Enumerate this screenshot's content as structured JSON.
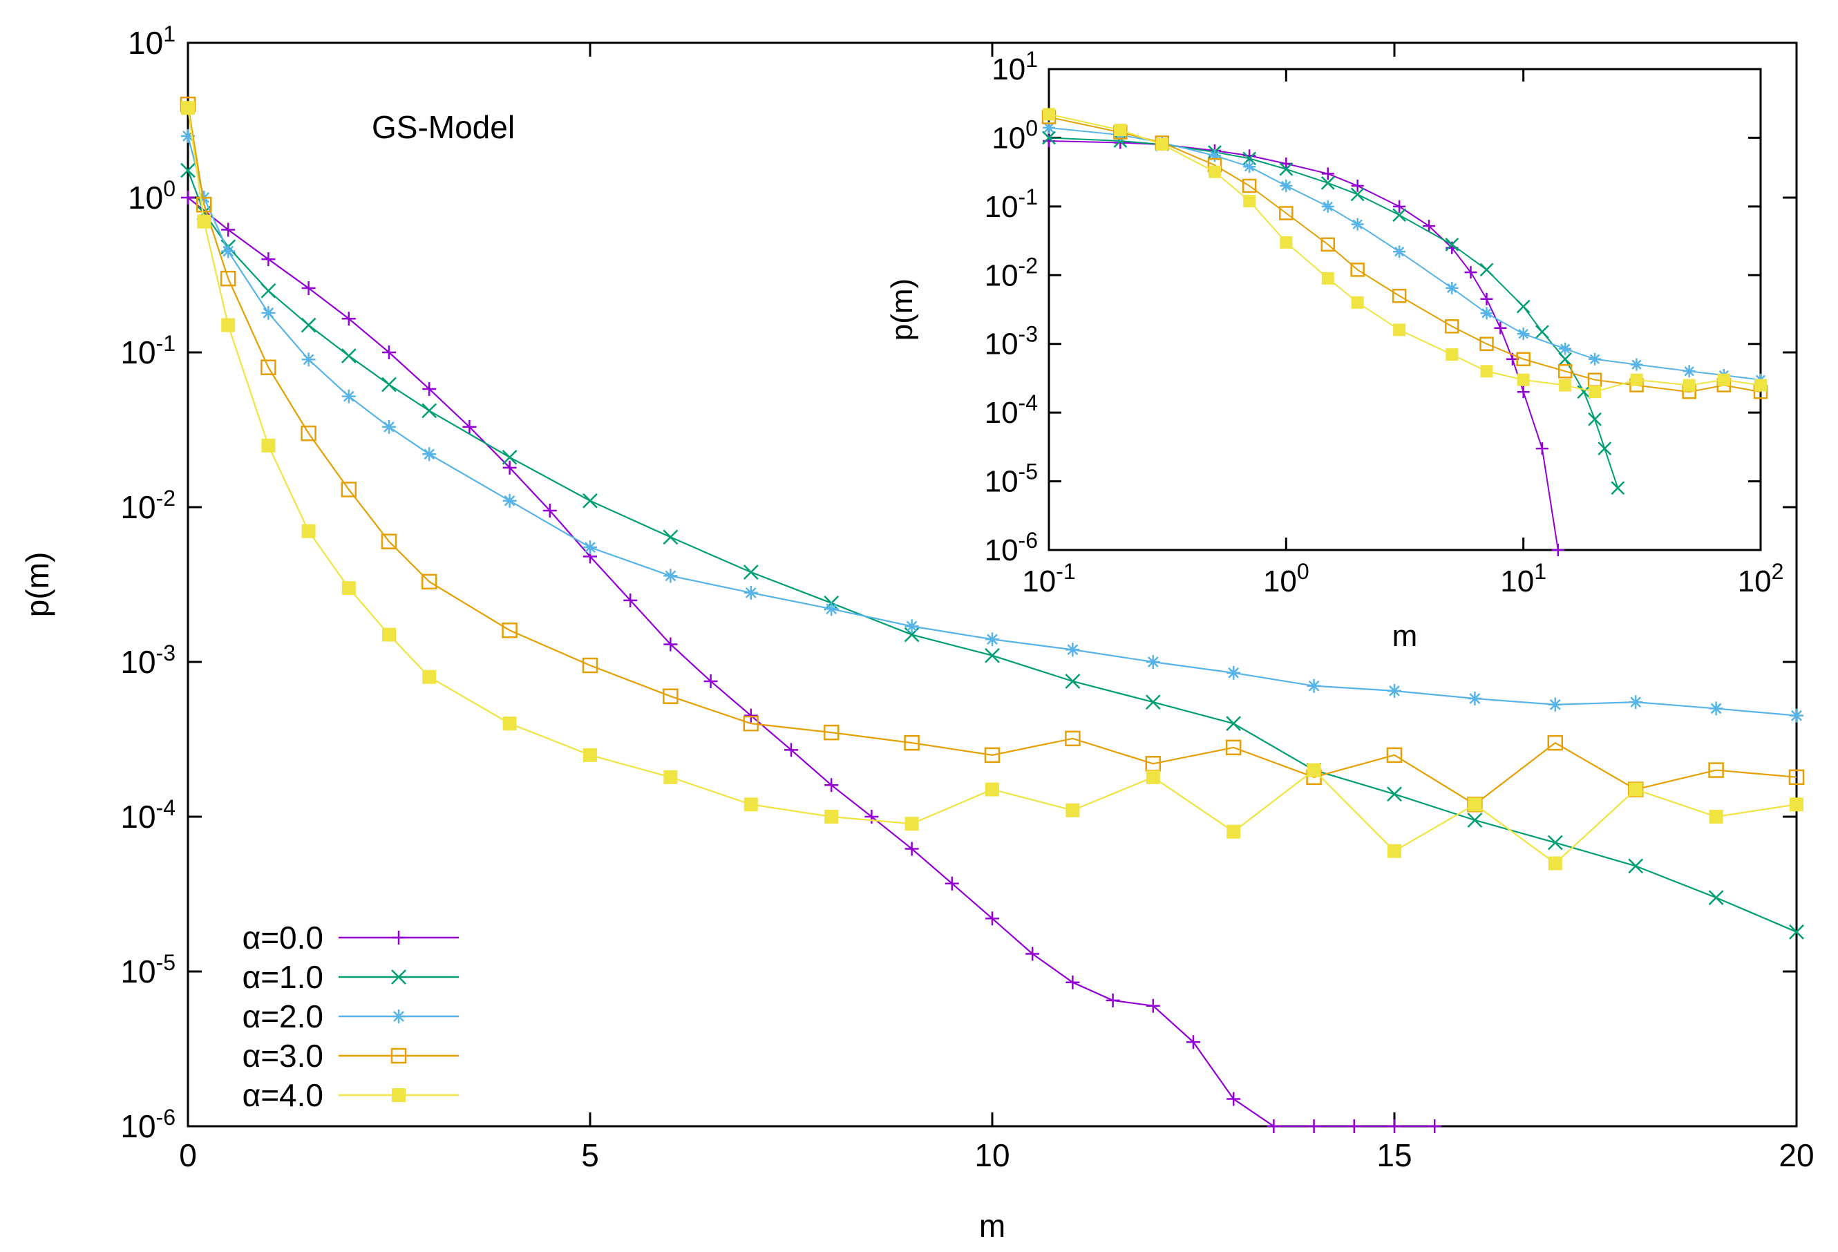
{
  "chart_data": [
    {
      "type": "line",
      "title": "",
      "annotation": "GS-Model",
      "xlabel": "m",
      "ylabel": "p(m)",
      "xlim": [
        0,
        20
      ],
      "ylim": [
        1e-06,
        10
      ],
      "y_scale": "log",
      "grid": false,
      "legend_position": "bottom-left",
      "x_ticks": [
        "0",
        "5",
        "10",
        "15",
        "20"
      ],
      "y_ticks": [
        {
          "base": "10",
          "exp": "1"
        },
        {
          "base": "10",
          "exp": "0"
        },
        {
          "base": "10",
          "exp": "-1"
        },
        {
          "base": "10",
          "exp": "-2"
        },
        {
          "base": "10",
          "exp": "-3"
        },
        {
          "base": "10",
          "exp": "-4"
        },
        {
          "base": "10",
          "exp": "-5"
        },
        {
          "base": "10",
          "exp": "-6"
        }
      ],
      "series": [
        {
          "name": "α=0.0",
          "color": "#9400d3",
          "marker": "plus",
          "x": [
            0,
            0.5,
            1,
            1.5,
            2,
            2.5,
            3,
            3.5,
            4,
            4.5,
            5,
            5.5,
            6,
            6.5,
            7,
            7.5,
            8,
            8.5,
            9,
            9.5,
            10,
            10.5,
            11,
            11.5,
            12,
            12.5,
            13,
            13.5,
            14,
            14.5,
            15,
            15.5
          ],
          "y": [
            1.0,
            0.62,
            0.4,
            0.26,
            0.165,
            0.1,
            0.058,
            0.033,
            0.018,
            0.0095,
            0.0048,
            0.0025,
            0.0013,
            0.00075,
            0.00045,
            0.00027,
            0.00016,
            0.0001,
            6.2e-05,
            3.7e-05,
            2.2e-05,
            1.3e-05,
            8.5e-06,
            6.5e-06,
            6e-06,
            3.5e-06,
            1.5e-06,
            1e-06,
            1e-06,
            1e-06,
            1e-06,
            1e-06
          ]
        },
        {
          "name": "α=1.0",
          "color": "#009e73",
          "marker": "cross",
          "x": [
            0,
            0.2,
            0.5,
            1,
            1.5,
            2,
            2.5,
            3,
            4,
            5,
            6,
            7,
            8,
            9,
            10,
            11,
            12,
            13,
            14,
            15,
            16,
            17,
            18,
            19,
            20
          ],
          "y": [
            1.5,
            0.8,
            0.48,
            0.25,
            0.15,
            0.095,
            0.062,
            0.042,
            0.021,
            0.011,
            0.0064,
            0.0038,
            0.0024,
            0.0015,
            0.0011,
            0.00075,
            0.00055,
            0.0004,
            0.0002,
            0.00014,
            9.5e-05,
            6.8e-05,
            4.8e-05,
            3e-05,
            1.8e-05
          ]
        },
        {
          "name": "α=2.0",
          "color": "#56b4e9",
          "marker": "star",
          "x": [
            0,
            0.2,
            0.5,
            1,
            1.5,
            2,
            2.5,
            3,
            4,
            5,
            6,
            7,
            8,
            9,
            10,
            11,
            12,
            13,
            14,
            15,
            16,
            17,
            18,
            19,
            20
          ],
          "y": [
            2.5,
            1.0,
            0.45,
            0.18,
            0.09,
            0.052,
            0.033,
            0.022,
            0.011,
            0.0055,
            0.0036,
            0.0028,
            0.0022,
            0.0017,
            0.0014,
            0.0012,
            0.001,
            0.00085,
            0.0007,
            0.00065,
            0.00058,
            0.00053,
            0.00055,
            0.0005,
            0.00045
          ]
        },
        {
          "name": "α=3.0",
          "color": "#e69f00",
          "marker": "open-square",
          "x": [
            0,
            0.2,
            0.5,
            1,
            1.5,
            2,
            2.5,
            3,
            4,
            5,
            6,
            7,
            8,
            9,
            10,
            11,
            12,
            13,
            14,
            15,
            16,
            17,
            18,
            19,
            20
          ],
          "y": [
            4.0,
            0.9,
            0.3,
            0.08,
            0.03,
            0.013,
            0.006,
            0.0033,
            0.0016,
            0.00095,
            0.0006,
            0.0004,
            0.00035,
            0.0003,
            0.00025,
            0.00032,
            0.00022,
            0.00028,
            0.00018,
            0.00025,
            0.00012,
            0.0003,
            0.00015,
            0.0002,
            0.00018
          ]
        },
        {
          "name": "α=4.0",
          "color": "#f0e442",
          "marker": "filled-square",
          "x": [
            0,
            0.2,
            0.5,
            1,
            1.5,
            2,
            2.5,
            3,
            4,
            5,
            6,
            7,
            8,
            9,
            10,
            11,
            12,
            13,
            14,
            15,
            16,
            17,
            18,
            19,
            20
          ],
          "y": [
            3.8,
            0.7,
            0.15,
            0.025,
            0.007,
            0.003,
            0.0015,
            0.0008,
            0.0004,
            0.00025,
            0.00018,
            0.00012,
            0.0001,
            9e-05,
            0.00015,
            0.00011,
            0.00018,
            8e-05,
            0.0002,
            6e-05,
            0.00012,
            5e-05,
            0.00015,
            0.0001,
            0.00012
          ]
        }
      ]
    },
    {
      "type": "line",
      "title": "",
      "xlabel": "m",
      "ylabel": "p(m)",
      "xlim": [
        0.1,
        100
      ],
      "ylim": [
        1e-06,
        10
      ],
      "x_scale": "log",
      "y_scale": "log",
      "grid": false,
      "x_ticks": [
        {
          "base": "10",
          "exp": "-1"
        },
        {
          "base": "10",
          "exp": "0"
        },
        {
          "base": "10",
          "exp": "1"
        },
        {
          "base": "10",
          "exp": "2"
        }
      ],
      "y_ticks": [
        {
          "base": "10",
          "exp": "1"
        },
        {
          "base": "10",
          "exp": "0"
        },
        {
          "base": "10",
          "exp": "-1"
        },
        {
          "base": "10",
          "exp": "-2"
        },
        {
          "base": "10",
          "exp": "-3"
        },
        {
          "base": "10",
          "exp": "-4"
        },
        {
          "base": "10",
          "exp": "-5"
        },
        {
          "base": "10",
          "exp": "-6"
        }
      ],
      "series": [
        {
          "color": "#9400d3",
          "marker": "plus",
          "x": [
            0.1,
            0.2,
            0.3,
            0.5,
            0.7,
            1,
            1.5,
            2,
            3,
            4,
            5,
            6,
            7,
            8,
            9,
            10,
            12,
            14
          ],
          "y": [
            0.9,
            0.85,
            0.8,
            0.65,
            0.55,
            0.42,
            0.3,
            0.2,
            0.1,
            0.052,
            0.025,
            0.011,
            0.0045,
            0.0017,
            0.0006,
            0.0002,
            3e-05,
            1e-06
          ]
        },
        {
          "color": "#009e73",
          "marker": "cross",
          "x": [
            0.1,
            0.2,
            0.3,
            0.5,
            0.7,
            1,
            1.5,
            2,
            3,
            5,
            7,
            10,
            12,
            15,
            18,
            20,
            22,
            25
          ],
          "y": [
            1.0,
            0.9,
            0.8,
            0.62,
            0.5,
            0.35,
            0.22,
            0.15,
            0.075,
            0.028,
            0.012,
            0.0035,
            0.0015,
            0.0006,
            0.0002,
            8e-05,
            3e-05,
            8e-06
          ]
        },
        {
          "color": "#56b4e9",
          "marker": "star",
          "x": [
            0.1,
            0.2,
            0.3,
            0.5,
            0.7,
            1,
            1.5,
            2,
            3,
            5,
            7,
            10,
            15,
            20,
            30,
            50,
            70,
            100
          ],
          "y": [
            1.4,
            1.1,
            0.85,
            0.55,
            0.38,
            0.2,
            0.1,
            0.055,
            0.022,
            0.0065,
            0.0028,
            0.0014,
            0.00085,
            0.0006,
            0.0005,
            0.0004,
            0.00035,
            0.0003
          ]
        },
        {
          "color": "#e69f00",
          "marker": "open-square",
          "x": [
            0.1,
            0.2,
            0.3,
            0.5,
            0.7,
            1,
            1.5,
            2,
            3,
            5,
            7,
            10,
            15,
            20,
            30,
            50,
            70,
            100
          ],
          "y": [
            2.0,
            1.2,
            0.85,
            0.4,
            0.2,
            0.08,
            0.028,
            0.012,
            0.005,
            0.0018,
            0.001,
            0.0006,
            0.0004,
            0.0003,
            0.00025,
            0.0002,
            0.00025,
            0.0002
          ]
        },
        {
          "color": "#f0e442",
          "marker": "filled-square",
          "x": [
            0.1,
            0.2,
            0.3,
            0.5,
            0.7,
            1,
            1.5,
            2,
            3,
            5,
            7,
            10,
            15,
            20,
            30,
            50,
            70,
            100
          ],
          "y": [
            2.2,
            1.3,
            0.8,
            0.32,
            0.12,
            0.03,
            0.009,
            0.004,
            0.0016,
            0.0007,
            0.0004,
            0.0003,
            0.00025,
            0.0002,
            0.0003,
            0.00025,
            0.0003,
            0.00025
          ]
        }
      ]
    }
  ]
}
